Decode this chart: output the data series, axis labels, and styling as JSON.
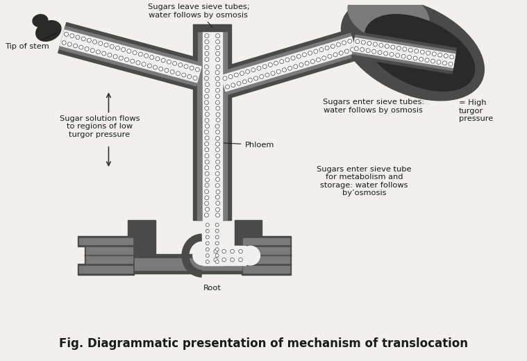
{
  "title": "Fig. Diagrammatic presentation of mechanism of translocation",
  "title_fontsize": 12,
  "title_bold": true,
  "background_color": "#f2f0ed",
  "fig_width": 7.59,
  "fig_height": 5.2,
  "labels": {
    "tip_of_stem": "Tip of stem",
    "sugars_leave": "Sugars leave sieve tubes;\nwater follows by osmosis",
    "sugar_solution": "Sugar solution flows\nto regions of low\nturgor pressure",
    "sugars_enter_leaf": "Sugars enter sieve tubes:\nwater follows by osmosis",
    "high_turgor": "= High\nturgor\npressure",
    "phloem": "Phloem",
    "sugars_enter_root": "Sugars enter sieve tube\nfor metabolism and\nstorage: water follows\nby’osmosis",
    "root": "Root"
  },
  "colors": {
    "very_dark": "#2a2a2a",
    "dark_gray": "#4a4a4a",
    "mid_gray": "#7a7a7a",
    "light_gray": "#b8b8b8",
    "white_tube": "#f0f0f0",
    "circle_fill": "#ffffff",
    "circle_edge": "#444444",
    "background": "#f2f0ed",
    "text": "#1a1a1a"
  }
}
